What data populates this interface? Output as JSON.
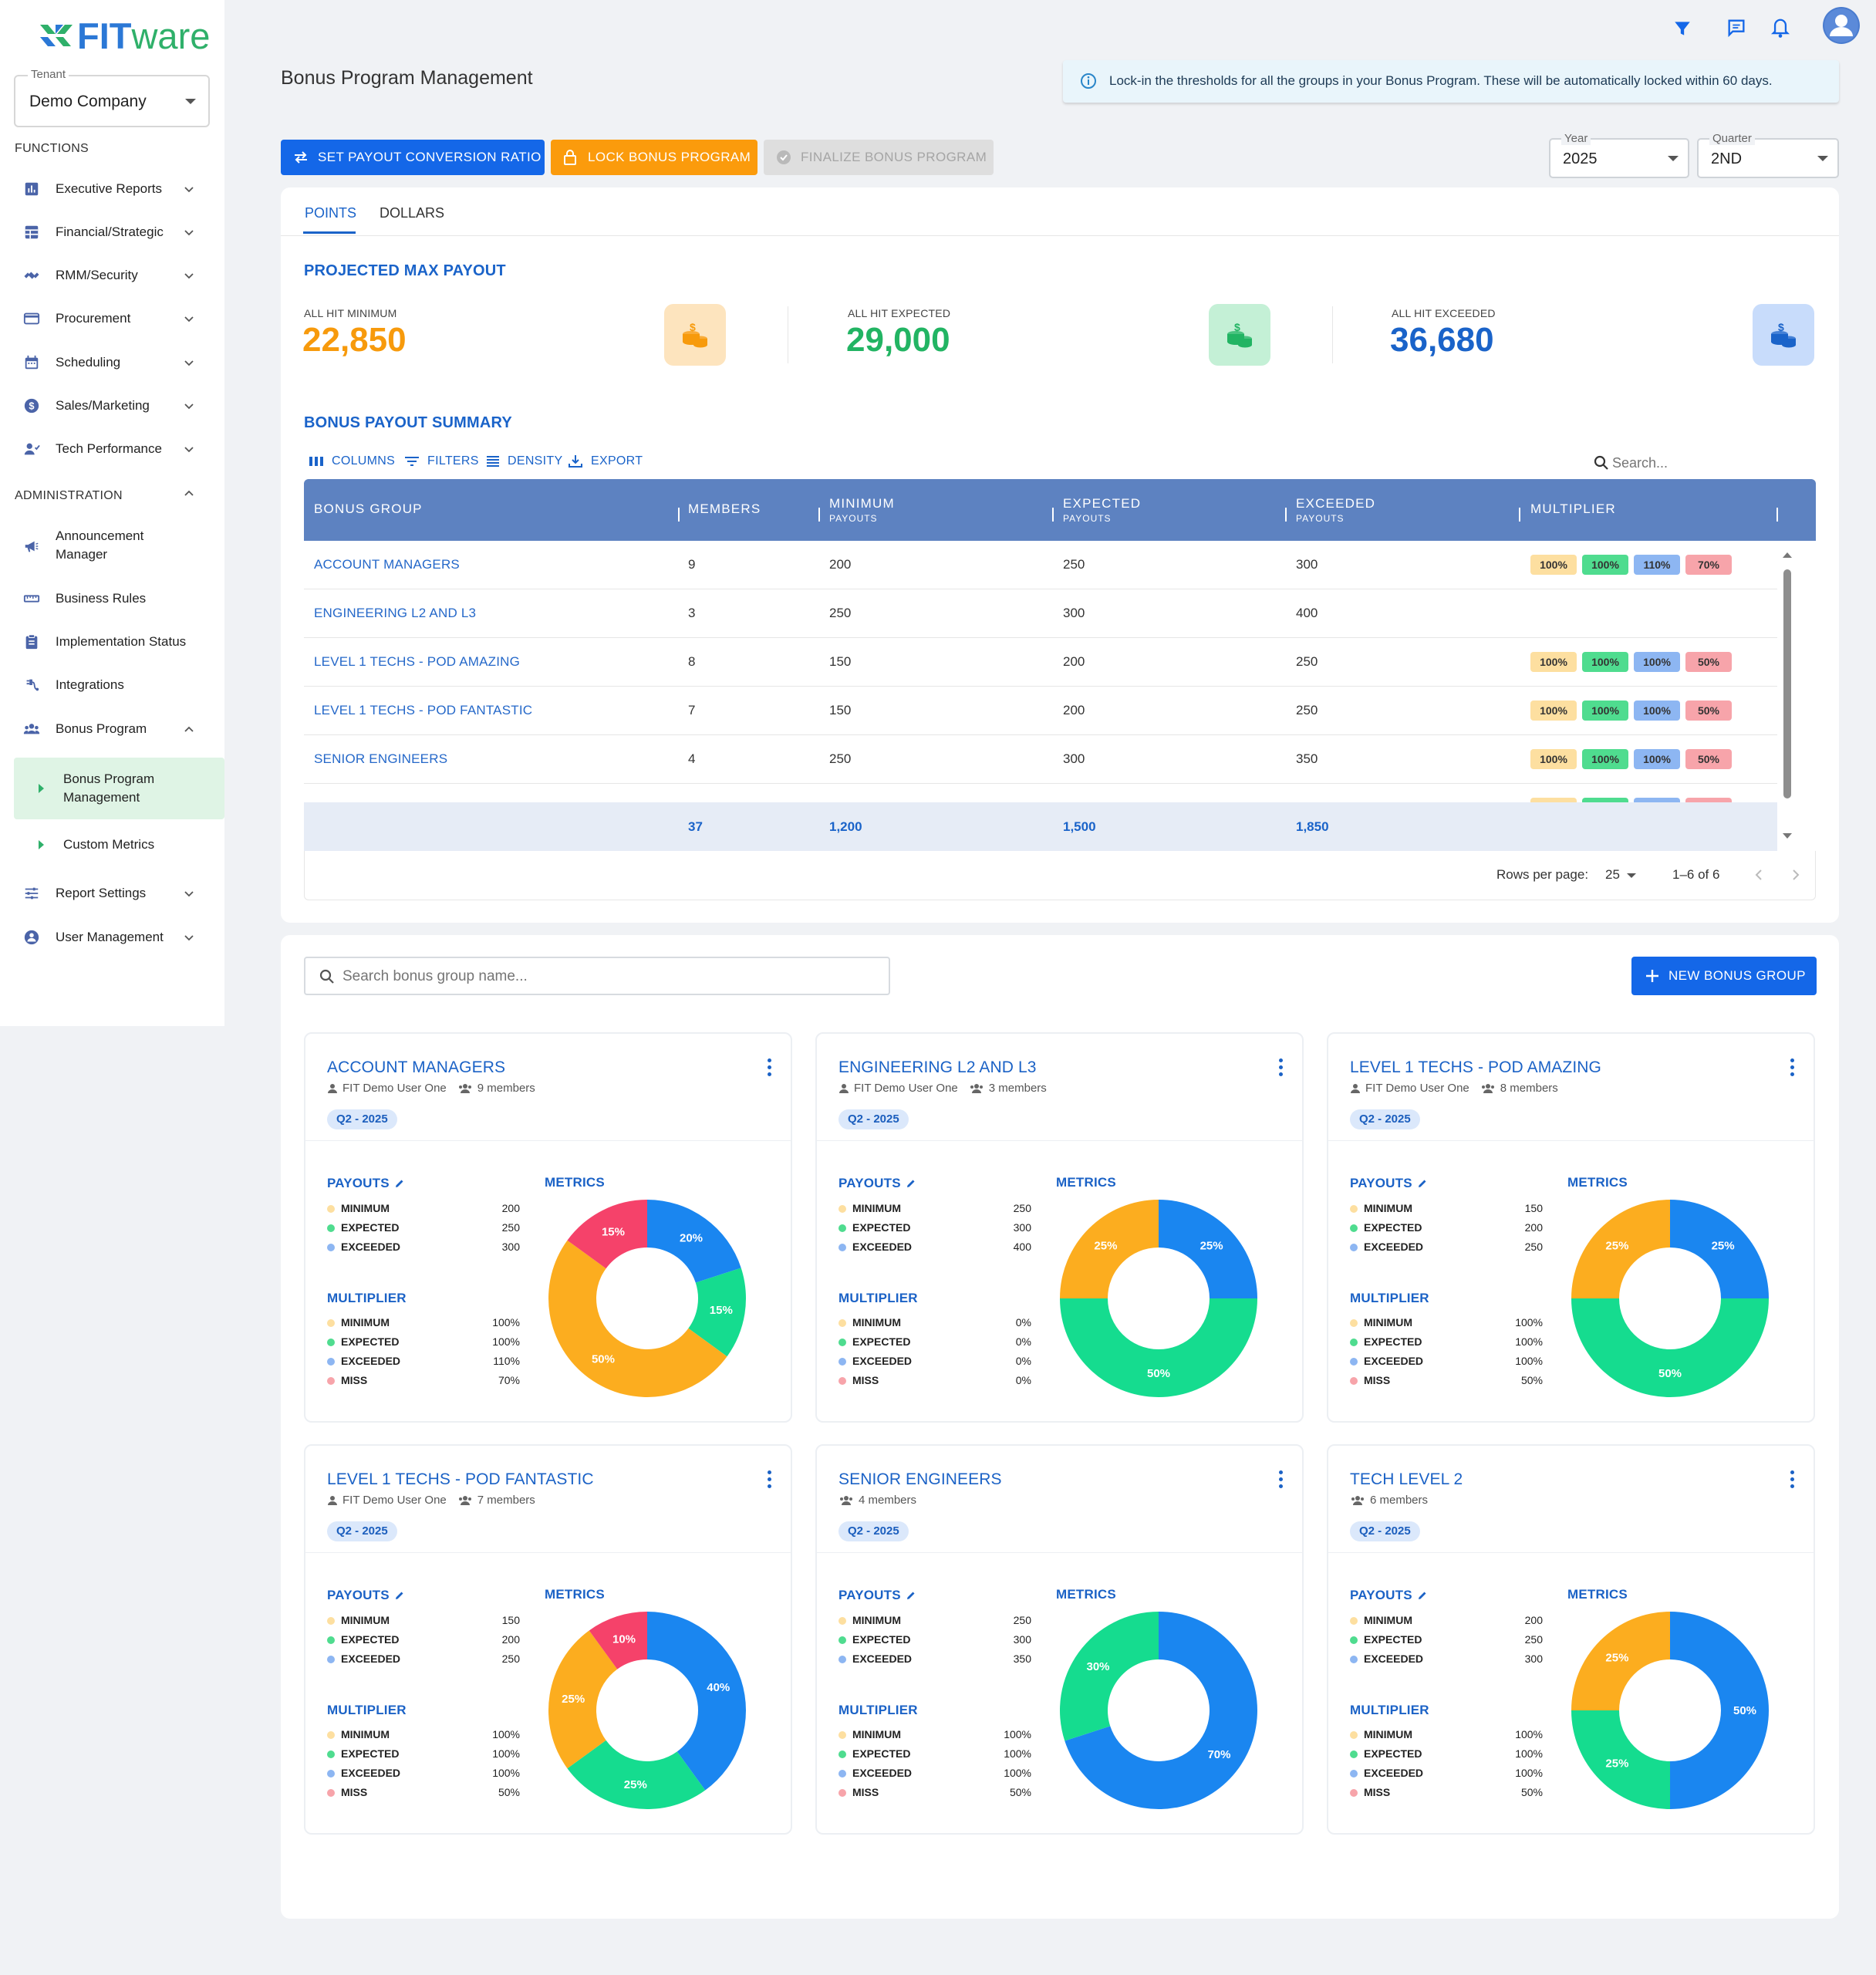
{
  "brand": {
    "name_part1": "FIT",
    "name_part2": "ware"
  },
  "tenant": {
    "label": "Tenant",
    "value": "Demo Company"
  },
  "sidebar": {
    "functions_label": "FUNCTIONS",
    "functions": [
      {
        "label": "Executive Reports",
        "icon": "bar-chart-icon"
      },
      {
        "label": "Financial/Strategic",
        "icon": "grid-icon"
      },
      {
        "label": "RMM/Security",
        "icon": "satellite-icon"
      },
      {
        "label": "Procurement",
        "icon": "card-icon"
      },
      {
        "label": "Scheduling",
        "icon": "calendar-icon"
      },
      {
        "label": "Sales/Marketing",
        "icon": "dollar-icon"
      },
      {
        "label": "Tech Performance",
        "icon": "person-icon"
      }
    ],
    "admin_label": "ADMINISTRATION",
    "admin": [
      {
        "label": "Announcement Manager",
        "icon": "megaphone-icon"
      },
      {
        "label": "Business Rules",
        "icon": "ruler-icon"
      },
      {
        "label": "Implementation Status",
        "icon": "clipboard-icon"
      },
      {
        "label": "Integrations",
        "icon": "plug-icon"
      },
      {
        "label": "Bonus Program",
        "icon": "group-icon"
      }
    ],
    "bonus_sub": [
      "Bonus Program Management",
      "Custom Metrics"
    ],
    "bottom": [
      {
        "label": "Report Settings",
        "icon": "sliders-icon"
      },
      {
        "label": "User Management",
        "icon": "globe-user-icon"
      }
    ]
  },
  "header": {
    "title": "Bonus Program Management",
    "info": "Lock-in the thresholds for all the groups in your Bonus Program. These will be automatically locked within 60 days."
  },
  "actions": {
    "set_ratio": "SET PAYOUT CONVERSION RATIO",
    "lock": "LOCK BONUS PROGRAM",
    "finalize": "FINALIZE BONUS PROGRAM"
  },
  "filters": {
    "year_label": "Year",
    "year": "2025",
    "quarter_label": "Quarter",
    "quarter": "2ND"
  },
  "tabs": [
    "POINTS",
    "DOLLARS"
  ],
  "projected": {
    "title": "PROJECTED MAX PAYOUT",
    "stats": [
      {
        "label": "ALL HIT MINIMUM",
        "value": "22,850",
        "color": "#f79a0c"
      },
      {
        "label": "ALL HIT EXPECTED",
        "value": "29,000",
        "color": "#22b463"
      },
      {
        "label": "ALL HIT EXCEEDED",
        "value": "36,680",
        "color": "#1a63c9"
      }
    ]
  },
  "summary": {
    "title": "BONUS PAYOUT SUMMARY",
    "toolbar": [
      "COLUMNS",
      "FILTERS",
      "DENSITY",
      "EXPORT"
    ],
    "search_placeholder": "Search...",
    "columns": [
      {
        "label": "BONUS GROUP",
        "sub": ""
      },
      {
        "label": "MEMBERS",
        "sub": ""
      },
      {
        "label": "MINIMUM",
        "sub": "PAYOUTS"
      },
      {
        "label": "EXPECTED",
        "sub": "PAYOUTS"
      },
      {
        "label": "EXCEEDED",
        "sub": "PAYOUTS"
      },
      {
        "label": "MULTIPLIER",
        "sub": ""
      }
    ],
    "rows": [
      {
        "group": "ACCOUNT MANAGERS",
        "members": "9",
        "min": "200",
        "exp": "250",
        "exc": "300",
        "mult": [
          "100%",
          "100%",
          "110%",
          "70%"
        ]
      },
      {
        "group": "ENGINEERING L2 AND L3",
        "members": "3",
        "min": "250",
        "exp": "300",
        "exc": "400",
        "mult": []
      },
      {
        "group": "LEVEL 1 TECHS - POD AMAZING",
        "members": "8",
        "min": "150",
        "exp": "200",
        "exc": "250",
        "mult": [
          "100%",
          "100%",
          "100%",
          "50%"
        ]
      },
      {
        "group": "LEVEL 1 TECHS - POD FANTASTIC",
        "members": "7",
        "min": "150",
        "exp": "200",
        "exc": "250",
        "mult": [
          "100%",
          "100%",
          "100%",
          "50%"
        ]
      },
      {
        "group": "SENIOR ENGINEERS",
        "members": "4",
        "min": "250",
        "exp": "300",
        "exc": "350",
        "mult": [
          "100%",
          "100%",
          "100%",
          "50%"
        ]
      }
    ],
    "totals": {
      "members": "37",
      "min": "1,200",
      "exp": "1,500",
      "exc": "1,850"
    },
    "rows_per_page_label": "Rows per page:",
    "rows_per_page": "25",
    "range": "1–6 of 6"
  },
  "groups_section": {
    "search_placeholder": "Search bonus group name...",
    "new_button": "NEW BONUS GROUP",
    "payouts_label": "PAYOUTS",
    "metrics_label": "METRICS",
    "multiplier_label": "MULTIPLIER",
    "payout_keys": [
      "MINIMUM",
      "EXPECTED",
      "EXCEEDED"
    ],
    "multiplier_keys": [
      "MINIMUM",
      "EXPECTED",
      "EXCEEDED",
      "MISS"
    ],
    "key_colors": [
      "#fddfa0",
      "#4fdc8f",
      "#8db6f2",
      "#f7a4aa"
    ]
  },
  "groups": [
    {
      "title": "ACCOUNT MANAGERS",
      "owner": "FIT Demo User One",
      "members": "9 members",
      "badge": "Q2 - 2025",
      "payouts": [
        "200",
        "250",
        "300"
      ],
      "multiplier": [
        "100%",
        "100%",
        "110%",
        "70%"
      ],
      "chart_data": {
        "type": "donut",
        "slices": [
          {
            "value": 20,
            "label": "20%",
            "color": "#1a86f0"
          },
          {
            "value": 15,
            "label": "15%",
            "color": "#15dc8f"
          },
          {
            "value": 50,
            "label": "50%",
            "color": "#fcad1f"
          },
          {
            "value": 15,
            "label": "15%",
            "color": "#f5426a"
          }
        ]
      }
    },
    {
      "title": "ENGINEERING L2 AND L3",
      "owner": "FIT Demo User One",
      "members": "3 members",
      "badge": "Q2 - 2025",
      "payouts": [
        "250",
        "300",
        "400"
      ],
      "multiplier": [
        "0%",
        "0%",
        "0%",
        "0%"
      ],
      "chart_data": {
        "type": "donut",
        "slices": [
          {
            "value": 25,
            "label": "25%",
            "color": "#1a86f0"
          },
          {
            "value": 50,
            "label": "50%",
            "color": "#15dc8f"
          },
          {
            "value": 25,
            "label": "25%",
            "color": "#fcad1f"
          }
        ]
      }
    },
    {
      "title": "LEVEL 1 TECHS - POD AMAZING",
      "owner": "FIT Demo User One",
      "members": "8 members",
      "badge": "Q2 - 2025",
      "payouts": [
        "150",
        "200",
        "250"
      ],
      "multiplier": [
        "100%",
        "100%",
        "100%",
        "50%"
      ],
      "chart_data": {
        "type": "donut",
        "slices": [
          {
            "value": 25,
            "label": "25%",
            "color": "#1a86f0"
          },
          {
            "value": 50,
            "label": "50%",
            "color": "#15dc8f"
          },
          {
            "value": 25,
            "label": "25%",
            "color": "#fcad1f"
          }
        ]
      }
    },
    {
      "title": "LEVEL 1 TECHS - POD FANTASTIC",
      "owner": "FIT Demo User One",
      "members": "7 members",
      "badge": "Q2 - 2025",
      "payouts": [
        "150",
        "200",
        "250"
      ],
      "multiplier": [
        "100%",
        "100%",
        "100%",
        "50%"
      ],
      "chart_data": {
        "type": "donut",
        "slices": [
          {
            "value": 40,
            "label": "40%",
            "color": "#1a86f0"
          },
          {
            "value": 25,
            "label": "25%",
            "color": "#15dc8f"
          },
          {
            "value": 25,
            "label": "25%",
            "color": "#fcad1f"
          },
          {
            "value": 10,
            "label": "10%",
            "color": "#f5426a"
          }
        ]
      }
    },
    {
      "title": "SENIOR ENGINEERS",
      "owner": "",
      "members": "4 members",
      "badge": "Q2 - 2025",
      "payouts": [
        "250",
        "300",
        "350"
      ],
      "multiplier": [
        "100%",
        "100%",
        "100%",
        "50%"
      ],
      "chart_data": {
        "type": "donut",
        "slices": [
          {
            "value": 70,
            "label": "70%",
            "color": "#1a86f0"
          },
          {
            "value": 30,
            "label": "30%",
            "color": "#15dc8f"
          }
        ]
      }
    },
    {
      "title": "TECH LEVEL 2",
      "owner": "",
      "members": "6 members",
      "badge": "Q2 - 2025",
      "payouts": [
        "200",
        "250",
        "300"
      ],
      "multiplier": [
        "100%",
        "100%",
        "100%",
        "50%"
      ],
      "chart_data": {
        "type": "donut",
        "slices": [
          {
            "value": 50,
            "label": "50%",
            "color": "#1a86f0"
          },
          {
            "value": 25,
            "label": "25%",
            "color": "#15dc8f"
          },
          {
            "value": 25,
            "label": "25%",
            "color": "#fcad1f"
          }
        ]
      }
    }
  ]
}
